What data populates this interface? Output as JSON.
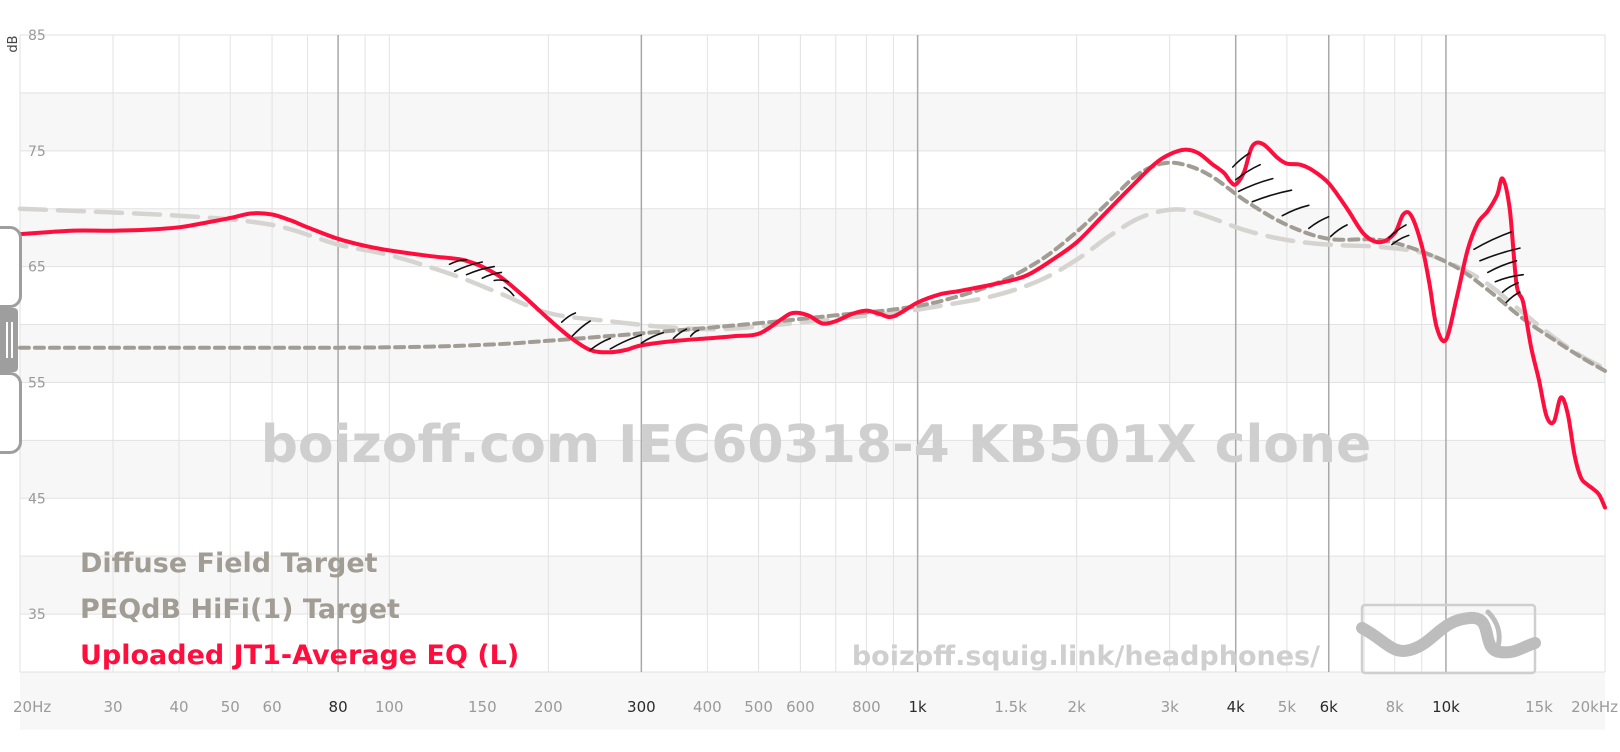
{
  "chart_data": {
    "type": "line",
    "xscale": "log",
    "xlim": [
      20,
      20000
    ],
    "ylim": [
      30,
      85
    ],
    "ylabel": "dB",
    "yticks": [
      "85",
      "75",
      "65",
      "55",
      "45",
      "35"
    ],
    "ytick_values": [
      85,
      75,
      65,
      55,
      45,
      35
    ],
    "xticks": [
      {
        "label": "20Hz",
        "value": 20,
        "major": false
      },
      {
        "label": "30",
        "value": 30,
        "major": false
      },
      {
        "label": "40",
        "value": 40,
        "major": false
      },
      {
        "label": "50",
        "value": 50,
        "major": false
      },
      {
        "label": "60",
        "value": 60,
        "major": false
      },
      {
        "label": "80",
        "value": 80,
        "major": true
      },
      {
        "label": "100",
        "value": 100,
        "major": false
      },
      {
        "label": "150",
        "value": 150,
        "major": false
      },
      {
        "label": "200",
        "value": 200,
        "major": false
      },
      {
        "label": "300",
        "value": 300,
        "major": true
      },
      {
        "label": "400",
        "value": 400,
        "major": false
      },
      {
        "label": "500",
        "value": 500,
        "major": false
      },
      {
        "label": "600",
        "value": 600,
        "major": false
      },
      {
        "label": "800",
        "value": 800,
        "major": false
      },
      {
        "label": "1k",
        "value": 1000,
        "major": true
      },
      {
        "label": "1.5k",
        "value": 1500,
        "major": false
      },
      {
        "label": "2k",
        "value": 2000,
        "major": false
      },
      {
        "label": "3k",
        "value": 3000,
        "major": false
      },
      {
        "label": "4k",
        "value": 4000,
        "major": true
      },
      {
        "label": "5k",
        "value": 5000,
        "major": false
      },
      {
        "label": "6k",
        "value": 6000,
        "major": true
      },
      {
        "label": "8k",
        "value": 8000,
        "major": false
      },
      {
        "label": "10k",
        "value": 10000,
        "major": true
      },
      {
        "label": "15k",
        "value": 15000,
        "major": false
      },
      {
        "label": "20kHz",
        "value": 20000,
        "major": false
      }
    ],
    "grid": true,
    "legend_position": "bottom-left",
    "series": [
      {
        "name": "Diffuse Field Target",
        "color": "#d6d4d0",
        "style": "long-dash",
        "x": [
          20,
          40,
          60,
          80,
          100,
          130,
          160,
          200,
          260,
          330,
          420,
          550,
          700,
          900,
          1100,
          1400,
          1700,
          2000,
          2300,
          2600,
          2900,
          3200,
          3600,
          4200,
          5000,
          6000,
          7500,
          9000,
          10500,
          12000,
          14000,
          16000,
          18000,
          20000
        ],
        "y": [
          70.0,
          69.4,
          68.6,
          66.9,
          66.0,
          64.4,
          62.8,
          61.0,
          60.3,
          59.8,
          59.6,
          60.0,
          60.5,
          61.0,
          61.6,
          62.5,
          63.8,
          65.6,
          67.6,
          69.1,
          69.8,
          69.9,
          69.2,
          68.1,
          67.3,
          66.9,
          66.7,
          66.2,
          65.0,
          63.5,
          61.0,
          58.9,
          57.3,
          56.2
        ]
      },
      {
        "name": "PEQdB HiFi(1) Target",
        "color": "#a29d94",
        "style": "short-dash",
        "x": [
          20,
          40,
          80,
          120,
          160,
          200,
          260,
          330,
          420,
          550,
          700,
          900,
          1100,
          1400,
          1700,
          2000,
          2300,
          2600,
          2900,
          3200,
          3600,
          4200,
          5000,
          6000,
          7500,
          9000,
          10500,
          12000,
          14000,
          16000,
          18000,
          20000
        ],
        "y": [
          58.0,
          58.0,
          58.0,
          58.1,
          58.3,
          58.6,
          59.0,
          59.4,
          59.8,
          60.3,
          60.8,
          61.3,
          62.0,
          63.5,
          65.5,
          68.0,
          70.6,
          72.9,
          73.9,
          73.8,
          72.8,
          70.6,
          68.6,
          67.4,
          67.3,
          66.3,
          64.9,
          63.0,
          60.5,
          58.7,
          57.2,
          56.0
        ]
      },
      {
        "name": "Uploaded JT1-Average EQ (L)",
        "color": "#ff0d3d",
        "style": "solid",
        "x": [
          20,
          25,
          30,
          35,
          40,
          45,
          50,
          55,
          60,
          65,
          70,
          80,
          90,
          100,
          120,
          140,
          160,
          180,
          200,
          220,
          240,
          260,
          280,
          300,
          350,
          400,
          450,
          500,
          550,
          580,
          620,
          660,
          700,
          750,
          800,
          850,
          900,
          1000,
          1100,
          1200,
          1400,
          1600,
          1800,
          2000,
          2200,
          2500,
          2800,
          3000,
          3200,
          3400,
          3600,
          3800,
          3900,
          4000,
          4150,
          4300,
          4500,
          4800,
          5000,
          5300,
          5600,
          6000,
          6500,
          7000,
          7500,
          8000,
          8300,
          8600,
          9000,
          9300,
          9600,
          10000,
          10500,
          11000,
          11500,
          12000,
          12500,
          12800,
          13200,
          13600,
          14000,
          14500,
          15000,
          15500,
          16000,
          16500,
          17000,
          17500,
          18000,
          18500,
          19000,
          19500,
          20000
        ],
        "y": [
          67.8,
          68.1,
          68.1,
          68.2,
          68.4,
          68.8,
          69.2,
          69.6,
          69.5,
          69.0,
          68.4,
          67.4,
          66.8,
          66.4,
          65.9,
          65.5,
          64.3,
          62.4,
          60.5,
          58.9,
          57.8,
          57.6,
          57.8,
          58.2,
          58.6,
          58.8,
          59.0,
          59.2,
          60.4,
          61.0,
          60.8,
          60.1,
          60.3,
          60.9,
          61.2,
          60.9,
          60.7,
          61.9,
          62.6,
          62.9,
          63.5,
          64.2,
          65.6,
          67.1,
          69.0,
          71.6,
          73.8,
          74.7,
          75.1,
          74.8,
          73.9,
          73.1,
          72.4,
          72.1,
          73.2,
          75.4,
          75.6,
          74.4,
          73.9,
          73.8,
          73.3,
          72.2,
          70.0,
          67.8,
          67.1,
          67.9,
          69.5,
          69.4,
          66.8,
          63.6,
          59.8,
          58.7,
          62.5,
          66.5,
          68.8,
          69.8,
          71.2,
          72.6,
          70.0,
          63.5,
          61.9,
          58.0,
          55.2,
          52.1,
          51.6,
          53.7,
          52.3,
          48.8,
          46.8,
          46.2,
          45.8,
          45.3,
          44.2
        ]
      }
    ],
    "watermark": "boizoff.com IEC60318-4 KB501X clone",
    "url": "boizoff.squig.link/headphones/"
  },
  "colors": {
    "grid": "#e2e2e2",
    "grid_major": "#a9a9a9",
    "band": "#f7f7f7",
    "handle": "#9e9e9e",
    "logo": "#bdbdbd"
  },
  "icons": {
    "logo": "squiglink-logo-icon",
    "handle": "drag-handle-icon"
  }
}
